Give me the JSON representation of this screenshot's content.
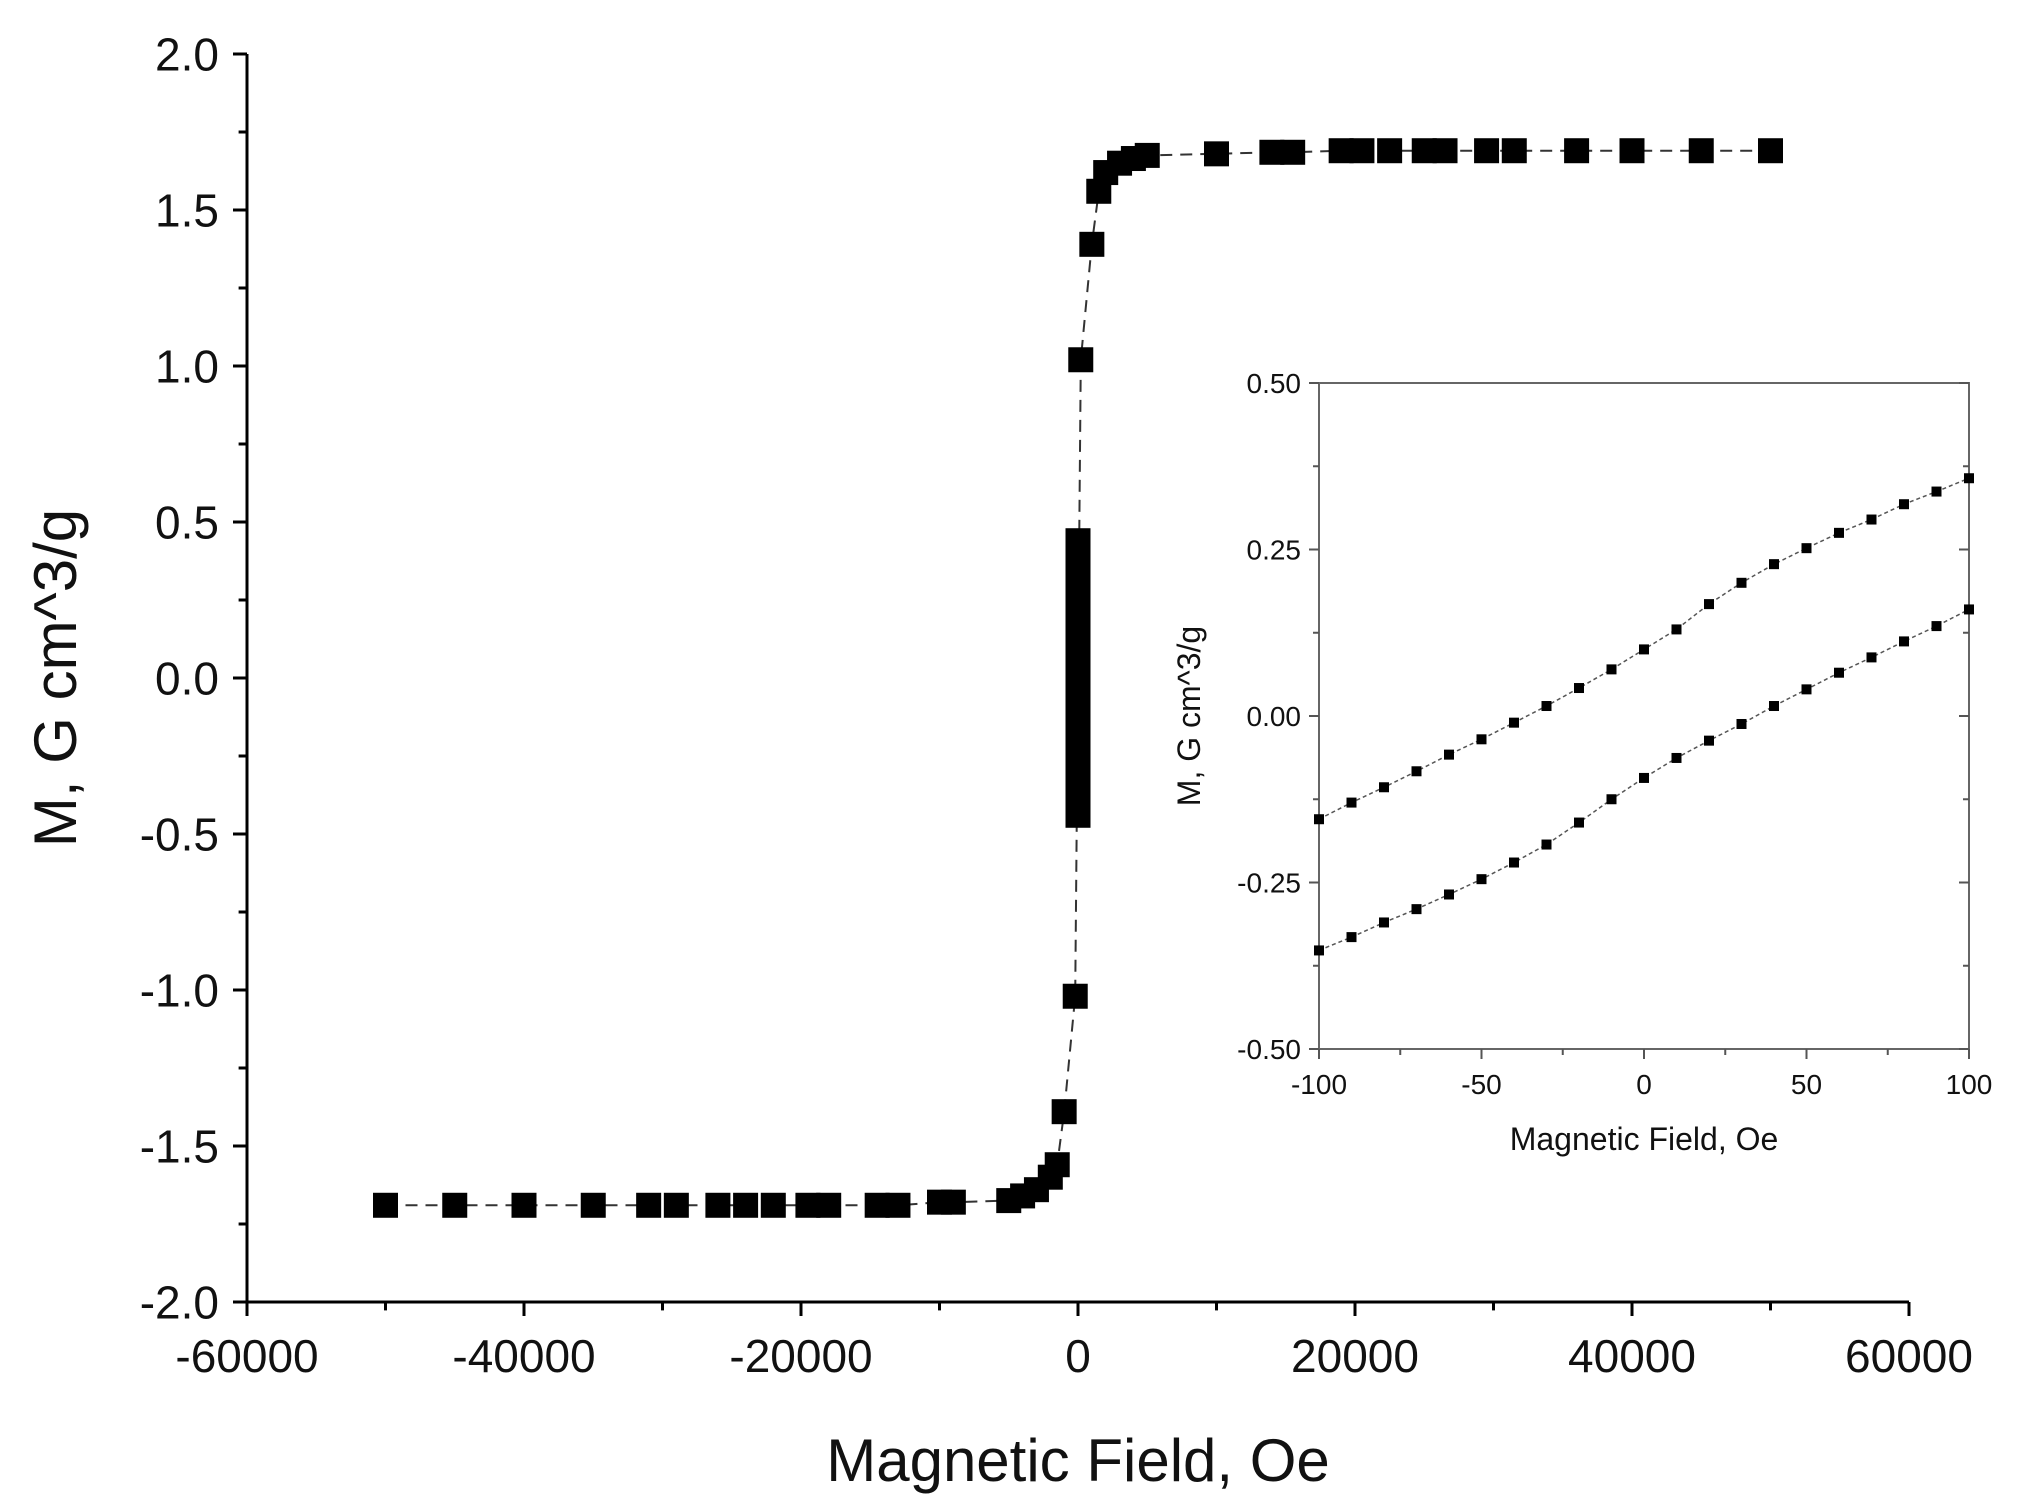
{
  "chart_data": [
    {
      "id": "main",
      "type": "scatter",
      "xlabel": "Magnetic Field, Oe",
      "ylabel": "M, G cm^3/g",
      "xlim": [
        -60000,
        60000
      ],
      "ylim": [
        -2.0,
        2.0
      ],
      "xticks": [
        -60000,
        -40000,
        -20000,
        0,
        20000,
        40000,
        60000
      ],
      "xtick_labels": [
        "-60000",
        "-40000",
        "-20000",
        "0",
        "20000",
        "40000",
        "60000"
      ],
      "yticks": [
        -2.0,
        -1.5,
        -1.0,
        -0.5,
        0.0,
        0.5,
        1.0,
        1.5,
        2.0
      ],
      "ytick_labels": [
        "-2.0",
        "-1.5",
        "-1.0",
        "-0.5",
        "0.0",
        "0.5",
        "1.0",
        "1.5",
        "2.0"
      ],
      "grid": false,
      "marker": "square",
      "line_style": "dashed",
      "color": "#000000",
      "series": [
        {
          "x": [
            -50000,
            -45000,
            -40000,
            -35000,
            -31000,
            -29000,
            -26000,
            -24000,
            -22000,
            -19500,
            -18000,
            -14500,
            -13000,
            -10000,
            -9000,
            -5000,
            -4000,
            -3000,
            -2000,
            -1500,
            -1000,
            -200,
            200,
            1000,
            1500,
            2000,
            3000,
            4000,
            5000,
            10000,
            14000,
            15500,
            19000,
            20500,
            22500,
            25000,
            26500,
            29500,
            31500,
            36000,
            40000,
            45000,
            50000
          ],
          "y": [
            -1.69,
            -1.69,
            -1.69,
            -1.69,
            -1.69,
            -1.69,
            -1.69,
            -1.69,
            -1.69,
            -1.69,
            -1.69,
            -1.69,
            -1.69,
            -1.68,
            -1.68,
            -1.675,
            -1.66,
            -1.64,
            -1.6,
            -1.56,
            -1.39,
            -1.02,
            1.02,
            1.39,
            1.56,
            1.62,
            1.65,
            1.665,
            1.675,
            1.68,
            1.685,
            1.685,
            1.69,
            1.69,
            1.69,
            1.69,
            1.69,
            1.69,
            1.69,
            1.69,
            1.69,
            1.69,
            1.69
          ]
        },
        {
          "x": [
            0,
            0,
            0,
            0,
            0,
            0,
            0,
            0,
            0,
            0,
            0,
            0,
            0,
            0,
            0,
            0,
            0,
            0
          ],
          "y": [
            0.44,
            0.38,
            0.32,
            0.26,
            0.2,
            0.14,
            0.08,
            0.02,
            -0.04,
            -0.1,
            -0.16,
            -0.22,
            -0.28,
            -0.34,
            -0.4,
            -0.44,
            0.0,
            0.1
          ]
        }
      ]
    },
    {
      "id": "inset",
      "type": "scatter",
      "xlabel": "Magnetic Field, Oe",
      "ylabel": "M, G cm^3/g",
      "xlim": [
        -100,
        100
      ],
      "ylim": [
        -0.5,
        0.5
      ],
      "xticks": [
        -100,
        -50,
        0,
        50,
        100
      ],
      "xtick_labels": [
        "-100",
        "-50",
        "0",
        "50",
        "100"
      ],
      "yticks": [
        -0.5,
        -0.25,
        0.0,
        0.25,
        0.5
      ],
      "ytick_labels": [
        "-0.50",
        "-0.25",
        "0.00",
        "0.25",
        "0.50"
      ],
      "grid": false,
      "marker": "square",
      "line_style": "dotted",
      "color": "#000000",
      "series": [
        {
          "x": [
            -100,
            -90,
            -80,
            -70,
            -60,
            -50,
            -40,
            -30,
            -20,
            -10,
            0,
            10,
            20,
            30,
            40,
            50,
            60,
            70,
            80,
            90,
            100
          ],
          "y": [
            -0.155,
            -0.13,
            -0.107,
            -0.083,
            -0.058,
            -0.035,
            -0.01,
            0.015,
            0.042,
            0.07,
            0.1,
            0.13,
            0.168,
            0.2,
            0.228,
            0.252,
            0.275,
            0.295,
            0.318,
            0.337,
            0.357
          ]
        },
        {
          "x": [
            -100,
            -90,
            -80,
            -70,
            -60,
            -50,
            -40,
            -30,
            -20,
            -10,
            0,
            10,
            20,
            30,
            40,
            50,
            60,
            70,
            80,
            90,
            100
          ],
          "y": [
            -0.352,
            -0.332,
            -0.31,
            -0.29,
            -0.268,
            -0.245,
            -0.22,
            -0.193,
            -0.16,
            -0.125,
            -0.093,
            -0.063,
            -0.037,
            -0.012,
            0.015,
            0.04,
            0.065,
            0.088,
            0.112,
            0.135,
            0.16
          ]
        }
      ]
    }
  ]
}
